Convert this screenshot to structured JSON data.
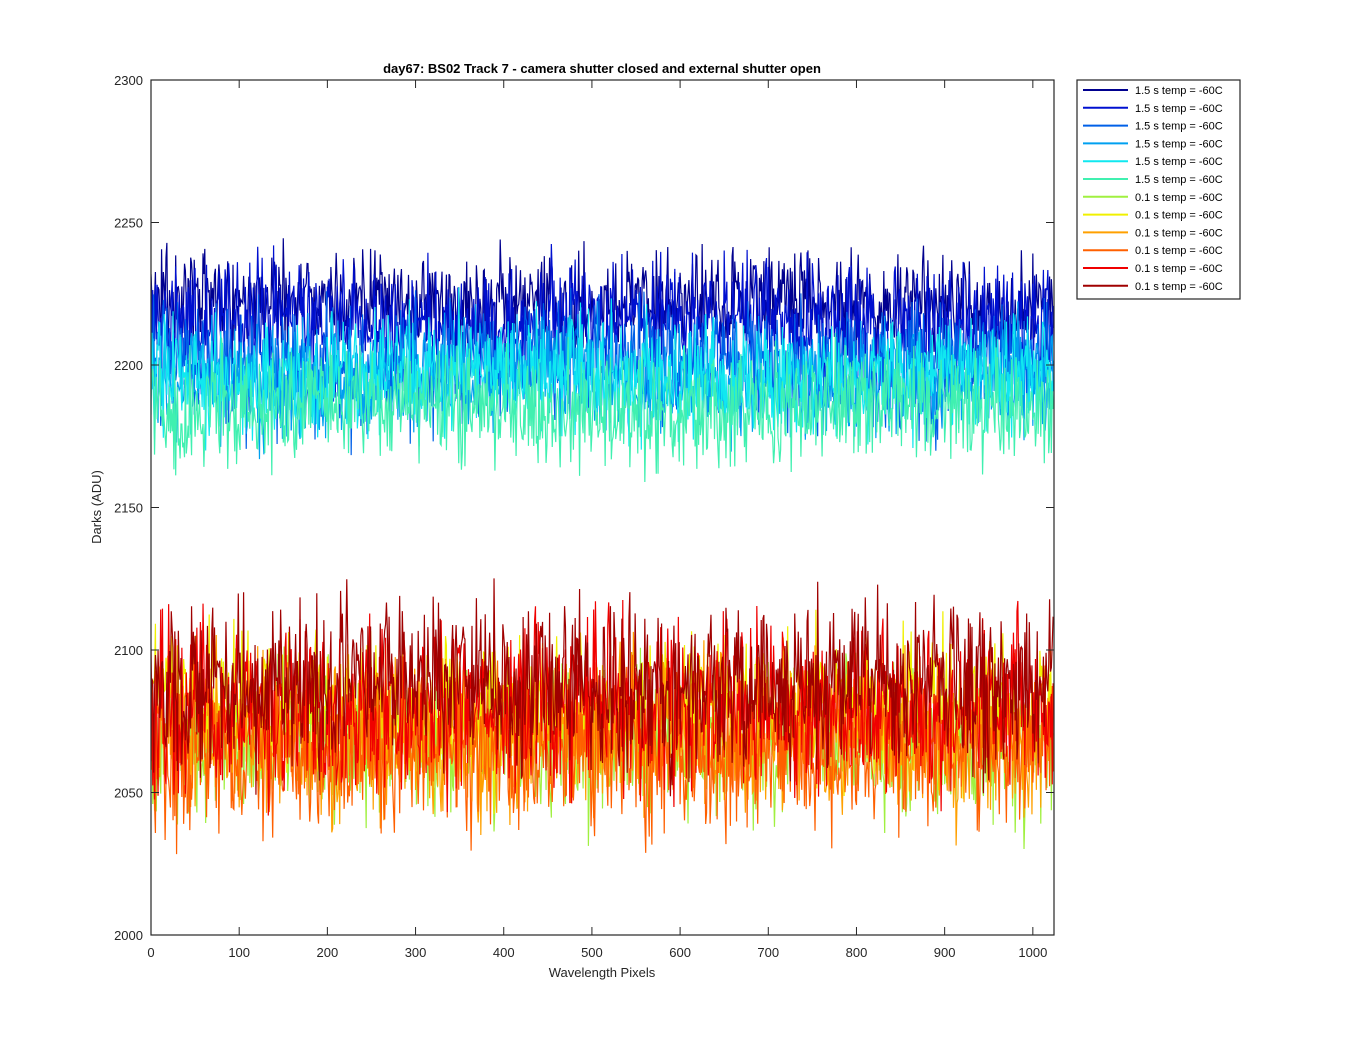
{
  "chart_data": {
    "type": "line",
    "title": "day67: BS02  Track 7 - camera shutter closed and external shutter open",
    "xlabel": "Wavelength Pixels",
    "ylabel": "Darks (ADU)",
    "xlim": [
      0,
      1024
    ],
    "ylim": [
      2000,
      2300
    ],
    "xticks": [
      "0",
      "100",
      "200",
      "300",
      "400",
      "500",
      "600",
      "700",
      "800",
      "900",
      "1000"
    ],
    "yticks": [
      "2000",
      "2050",
      "2100",
      "2150",
      "2200",
      "2250",
      "2300"
    ],
    "grid": false,
    "legend_position": "outside-top-right",
    "x_points": 1024,
    "series": [
      {
        "name": "1.5 s temp = -60C",
        "color": "#00008F",
        "mean": 2222,
        "amplitude": 9
      },
      {
        "name": "1.5 s temp = -60C",
        "color": "#0010D0",
        "mean": 2215,
        "amplitude": 10
      },
      {
        "name": "1.5 s temp = -60C",
        "color": "#0060E8",
        "mean": 2200,
        "amplitude": 11
      },
      {
        "name": "1.5 s temp = -60C",
        "color": "#00A0F0",
        "mean": 2195,
        "amplitude": 10
      },
      {
        "name": "1.5 s temp = -60C",
        "color": "#10E8F0",
        "mean": 2197,
        "amplitude": 10
      },
      {
        "name": "1.5 s temp = -60C",
        "color": "#40F0B0",
        "mean": 2185,
        "amplitude": 10
      },
      {
        "name": "0.1 s temp = -60C",
        "color": "#A0F040",
        "mean": 2068,
        "amplitude": 13
      },
      {
        "name": "0.1 s temp = -60C",
        "color": "#F0F000",
        "mean": 2080,
        "amplitude": 13
      },
      {
        "name": "0.1 s temp = -60C",
        "color": "#FFA000",
        "mean": 2070,
        "amplitude": 13
      },
      {
        "name": "0.1 s temp = -60C",
        "color": "#FF6000",
        "mean": 2065,
        "amplitude": 13
      },
      {
        "name": "0.1 s temp = -60C",
        "color": "#F00000",
        "mean": 2080,
        "amplitude": 14
      },
      {
        "name": "0.1 s temp = -60C",
        "color": "#A00000",
        "mean": 2088,
        "amplitude": 14
      }
    ]
  }
}
